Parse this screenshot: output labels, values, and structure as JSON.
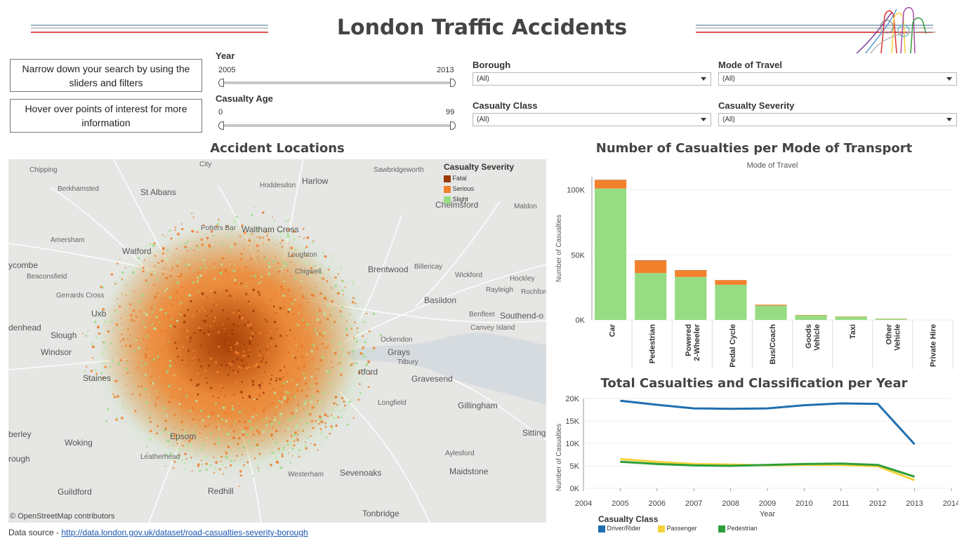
{
  "header": {
    "title": "London Traffic Accidents",
    "logo_icon": "london-transport-lines-logo"
  },
  "help": {
    "box1": "Narrow down your search by using the sliders and filters",
    "box2": "Hover over points of interest for more information"
  },
  "filters": {
    "year": {
      "label": "Year",
      "min": "2005",
      "max": "2013"
    },
    "age": {
      "label": "Casualty Age",
      "min": "0",
      "max": "99"
    },
    "borough": {
      "label": "Borough",
      "value": "(All)"
    },
    "mode": {
      "label": "Mode of Travel",
      "value": "(All)"
    },
    "casualty_class": {
      "label": "Casualty Class",
      "value": "(All)"
    },
    "casualty_severity": {
      "label": "Casualty Severity",
      "value": "(All)"
    }
  },
  "map": {
    "title": "Accident Locations",
    "legend_title": "Casualty Severity",
    "legend": [
      {
        "label": "Fatal",
        "color": "#9c3a06"
      },
      {
        "label": "Serious",
        "color": "#f2812d"
      },
      {
        "label": "Slight",
        "color": "#96dc82"
      }
    ],
    "attribution": "© OpenStreetMap contributors",
    "places": {
      "city": "City",
      "st_albans": "St Albans",
      "harlow": "Harlow",
      "berkhamsted": "Berkhamsted",
      "chelmsford": "Chelmsford",
      "hoddesdon": "Hoddesdon",
      "potters_bar": "Potters Bar",
      "waltham_cross": "Waltham Cross",
      "watford": "Watford",
      "amersham": "Amersham",
      "ycombe": "ycombe",
      "beaconsfield": "Beaconsfield",
      "brentwood": "Brentwood",
      "billericay": "Billericay",
      "loughton": "Loughton",
      "chigwell": "Chigwell",
      "wickford": "Wickford",
      "rayleigh": "Rayleigh",
      "hockley": "Hockley",
      "basildon": "Basildon",
      "southend": "Southend-o",
      "benfleet": "Benfleet",
      "canvey": "Canvey Island",
      "rochford": "Rochford",
      "slough": "Slough",
      "windsor": "Windsor",
      "uxb": "Uxb",
      "denhead": "denhead",
      "gerrards": "Gerrards Cross",
      "grays": "Grays",
      "tilbury": "Tilbury",
      "ockendon": "Ockendon",
      "gravesend": "Gravesend",
      "dartford": "rtford",
      "staines": "Staines",
      "longfield": "Longfield",
      "gillingham": "Gillingham",
      "woking": "Woking",
      "epsom": "Epsom",
      "leatherhead": "Leatherhead",
      "sevenoaks": "Sevenoaks",
      "maidstone": "Maidstone",
      "sitting": "Sitting",
      "aylesford": "Aylesford",
      "guildford": "Guildford",
      "redhill": "Redhill",
      "westerham": "Westerham",
      "tonbridge": "Tonbridge",
      "berley": "berley",
      "rough": "rough",
      "chipping": "Chipping",
      "sawbridge": "Sawbridgeworth",
      "maldon": "Maldon"
    }
  },
  "bar_chart": {
    "title": "Number of Casualties per Mode of Transport",
    "header": "Mode of Travel",
    "ylabel": "Number of Casualties",
    "ticks": [
      "0K",
      "50K",
      "100K"
    ]
  },
  "line_chart": {
    "title": "Total Casualties and Classification per Year",
    "ylabel": "Number of Casualties",
    "xlabel": "Year",
    "yticks": [
      "0K",
      "5K",
      "10K",
      "15K",
      "20K"
    ],
    "xticks": [
      "2004",
      "2005",
      "2006",
      "2007",
      "2008",
      "2009",
      "2010",
      "2011",
      "2012",
      "2013",
      "2014"
    ],
    "legend_title": "Casualty Class"
  },
  "footer": {
    "label": "Data source - ",
    "link": "http://data.london.gov.uk/dataset/road-casualties-severity-borough"
  },
  "chart_data": [
    {
      "type": "bar",
      "title": "Number of Casualties per Mode of Transport",
      "ylabel": "Number of Casualties",
      "ylim": [
        0,
        110000
      ],
      "categories": [
        "Car",
        "Pedestrian",
        "Powered 2-Wheeler",
        "Pedal Cycle",
        "Bus/Coach",
        "Goods Vehicle",
        "Taxi",
        "Other Vehicle",
        "Private Hire"
      ],
      "series": [
        {
          "name": "Slight",
          "color": "#96dc82",
          "values": [
            101000,
            36000,
            33000,
            27000,
            11000,
            3500,
            2500,
            800,
            0
          ]
        },
        {
          "name": "Serious",
          "color": "#f2812d",
          "values": [
            6500,
            9500,
            5000,
            3500,
            700,
            300,
            200,
            150,
            0
          ]
        },
        {
          "name": "Fatal",
          "color": "#9c3a06",
          "values": [
            200,
            300,
            200,
            100,
            20,
            10,
            5,
            5,
            0
          ]
        }
      ]
    },
    {
      "type": "line",
      "title": "Total Casualties and Classification per Year",
      "xlabel": "Year",
      "ylabel": "Number of Casualties",
      "xlim": [
        2004,
        2014
      ],
      "ylim": [
        0,
        20000
      ],
      "x": [
        2005,
        2006,
        2007,
        2008,
        2009,
        2010,
        2011,
        2012,
        2013
      ],
      "series": [
        {
          "name": "Driver/Rider",
          "color": "#1f6fb0",
          "values": [
            19500,
            18600,
            17800,
            17700,
            17800,
            18500,
            18900,
            18800,
            9800
          ]
        },
        {
          "name": "Passenger",
          "color": "#f5d23c",
          "values": [
            6500,
            5900,
            5400,
            5300,
            5100,
            5200,
            5200,
            4900,
            1800
          ]
        },
        {
          "name": "Pedestrian",
          "color": "#2e9e3a",
          "values": [
            5900,
            5400,
            5100,
            5000,
            5200,
            5400,
            5500,
            5200,
            2600
          ]
        }
      ]
    }
  ]
}
